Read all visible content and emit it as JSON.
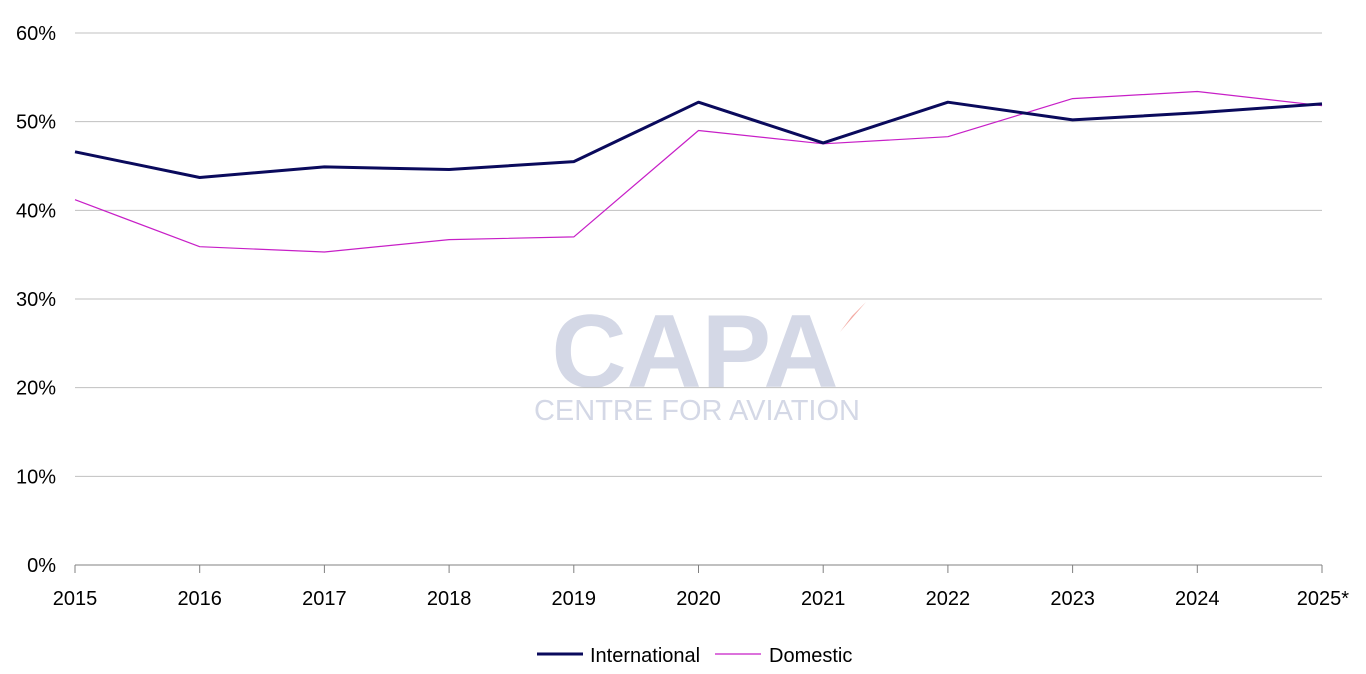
{
  "chart_data": {
    "type": "line",
    "categories": [
      "2015",
      "2016",
      "2017",
      "2018",
      "2019",
      "2020",
      "2021",
      "2022",
      "2023",
      "2024",
      "2025*"
    ],
    "series": [
      {
        "name": "International",
        "color": "#0a0a5c",
        "values": [
          46.6,
          43.7,
          44.9,
          44.6,
          45.5,
          52.2,
          47.6,
          52.2,
          50.2,
          51.0,
          52.0
        ]
      },
      {
        "name": "Domestic",
        "color": "#c71fc7",
        "values": [
          41.2,
          35.9,
          35.3,
          36.7,
          37.0,
          49.0,
          47.5,
          48.3,
          52.6,
          53.4,
          51.8
        ]
      }
    ],
    "y_ticks": [
      "0%",
      "10%",
      "20%",
      "30%",
      "40%",
      "50%",
      "60%"
    ],
    "ylim": [
      0,
      60
    ],
    "grid": true,
    "legend_position": "bottom",
    "gridline_color": "#c0c0c0"
  },
  "watermark": {
    "logo_text": "CAPA",
    "tagline": "CENTRE FOR AVIATION",
    "color": "#d4d8e6",
    "accent_color": "#f3a9a2"
  }
}
